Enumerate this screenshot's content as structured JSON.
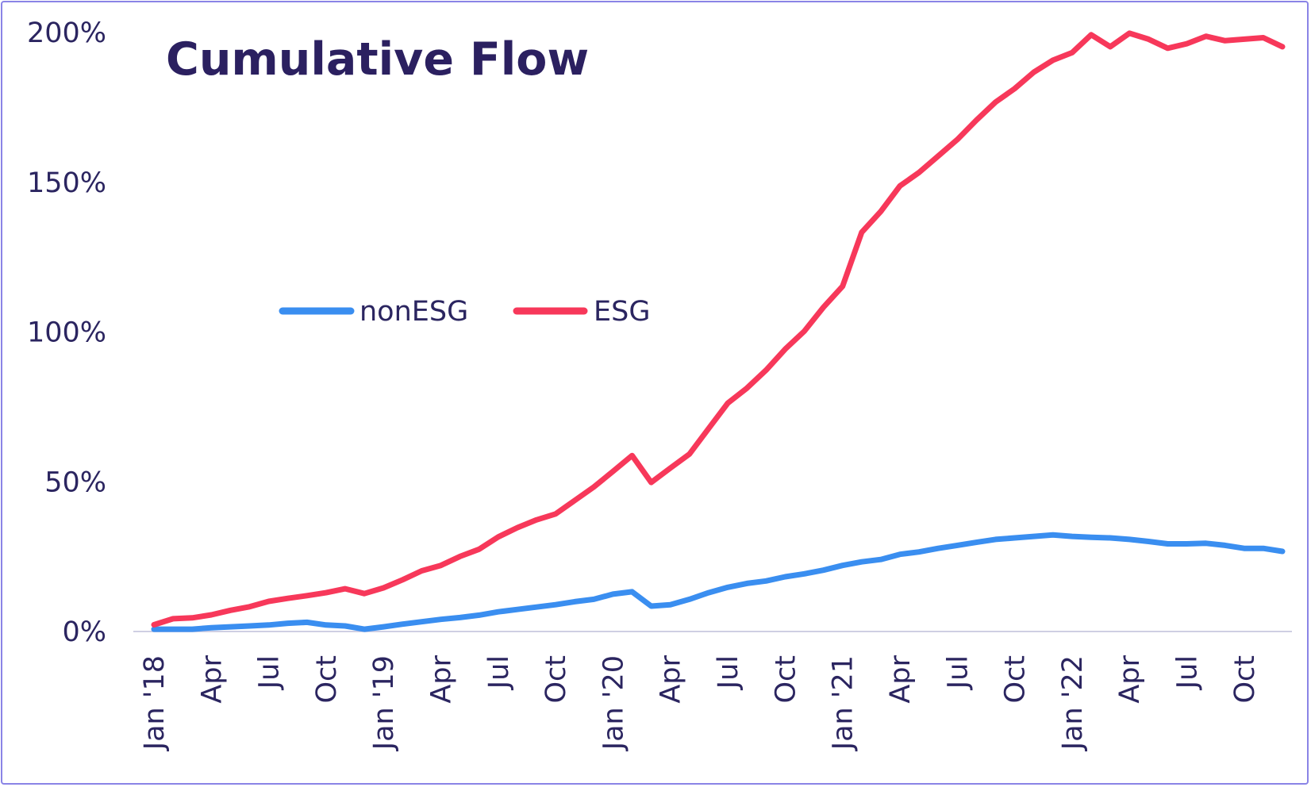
{
  "chart_data": {
    "type": "line",
    "title": "Cumulative Flow",
    "xlabel": "",
    "ylabel": "",
    "ylim": [
      0,
      200
    ],
    "y_ticks": [
      "0%",
      "50%",
      "100%",
      "150%",
      "200%"
    ],
    "y_tick_values": [
      0,
      50,
      100,
      150,
      200
    ],
    "x_tick_labels": [
      "Jan '18",
      "Apr",
      "Jul",
      "Oct",
      "Jan '19",
      "Apr",
      "Jul",
      "Oct",
      "Jan '20",
      "Apr",
      "Jul",
      "Oct",
      "Jan '21",
      "Apr",
      "Jul",
      "Oct",
      "Jan '22",
      "Apr",
      "Jul",
      "Oct"
    ],
    "x_tick_months": [
      0,
      3,
      6,
      9,
      12,
      15,
      18,
      21,
      24,
      27,
      30,
      33,
      36,
      39,
      42,
      45,
      48,
      51,
      54,
      57
    ],
    "x_months_range": [
      0,
      59
    ],
    "grid": false,
    "legend_position": "center-left",
    "series": [
      {
        "name": "nonESG",
        "color": "#3a8ef0",
        "values": [
          0.5,
          0.5,
          0.5,
          1.0,
          1.3,
          1.6,
          1.9,
          2.5,
          2.8,
          1.9,
          1.6,
          0.5,
          1.3,
          2.2,
          3.0,
          3.8,
          4.4,
          5.2,
          6.3,
          7.1,
          7.9,
          8.7,
          9.7,
          10.5,
          12.2,
          13.0,
          8.2,
          8.7,
          10.5,
          12.7,
          14.5,
          15.8,
          16.6,
          18.0,
          19.0,
          20.2,
          21.8,
          23.0,
          23.8,
          25.5,
          26.3,
          27.5,
          28.5,
          29.5,
          30.5,
          31.0,
          31.5,
          32.0,
          31.5,
          31.2,
          31.0,
          30.5,
          29.8,
          29.0,
          29.0,
          29.2,
          28.5,
          27.5,
          27.5,
          26.5
        ]
      },
      {
        "name": "ESG",
        "color": "#f7385a",
        "values": [
          2.0,
          4.0,
          4.3,
          5.3,
          6.8,
          8.0,
          9.8,
          10.8,
          11.7,
          12.7,
          14.0,
          12.4,
          14.3,
          17.0,
          20.0,
          21.8,
          24.8,
          27.2,
          31.3,
          34.4,
          37.0,
          39.0,
          43.5,
          48.0,
          53.2,
          58.5,
          49.5,
          54.3,
          59.0,
          67.5,
          76.0,
          81.0,
          87.0,
          94.0,
          100.0,
          108.0,
          115.0,
          133.0,
          140.0,
          148.5,
          153.0,
          158.5,
          164.0,
          170.5,
          176.5,
          181.0,
          186.5,
          190.5,
          193.0,
          199.0,
          195.0,
          199.5,
          197.5,
          194.5,
          196.0,
          198.5,
          197.0,
          197.5,
          198.0,
          195.0
        ]
      }
    ]
  }
}
